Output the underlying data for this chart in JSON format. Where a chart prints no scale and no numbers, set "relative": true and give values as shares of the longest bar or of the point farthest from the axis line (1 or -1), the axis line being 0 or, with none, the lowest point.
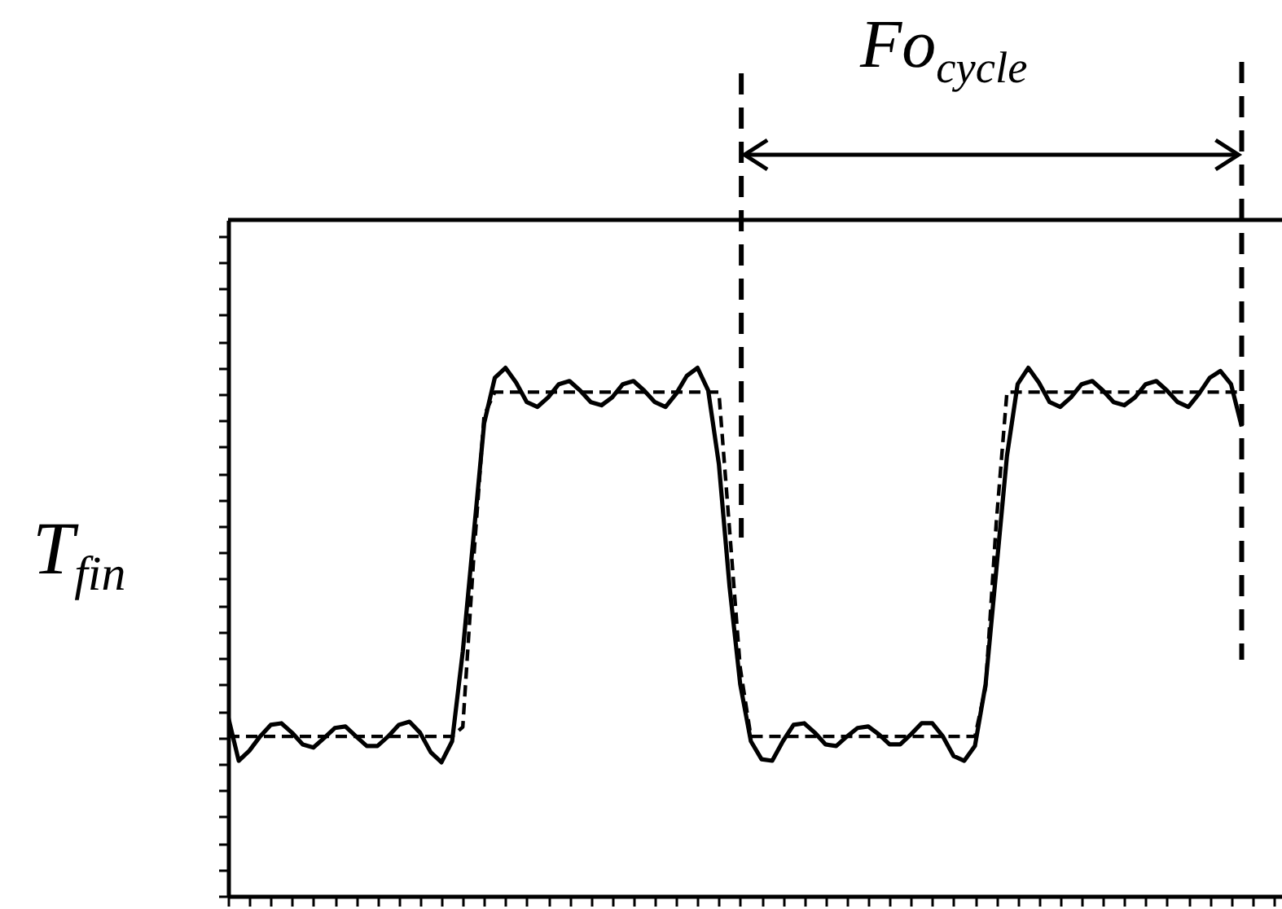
{
  "chart_data": {
    "type": "line",
    "relative": true,
    "ylabel": "T$_{fin}$",
    "annotations": [
      "Fo$_{cycle}$"
    ],
    "categories": [
      null,
      null,
      null,
      null,
      null,
      null,
      null,
      null,
      null,
      null,
      null,
      null,
      null,
      null,
      null,
      null,
      null,
      null,
      null,
      null,
      null,
      null,
      null,
      null,
      null,
      null,
      null,
      null,
      null,
      null,
      null,
      null,
      null,
      null,
      null,
      null,
      null,
      null,
      null,
      null,
      null,
      null,
      null,
      null,
      null,
      null,
      null,
      null,
      null,
      null,
      null,
      null,
      null,
      null,
      null,
      null,
      null,
      null,
      null,
      null,
      null,
      null,
      null,
      null,
      null,
      null,
      null,
      null,
      null,
      null,
      null,
      null,
      null,
      null,
      null,
      null,
      null,
      null,
      null,
      null,
      null,
      null,
      null,
      null,
      null,
      null,
      null,
      null,
      null,
      null,
      null,
      null,
      null,
      null,
      null,
      null
    ],
    "series": [
      {
        "color": "#000000",
        "line_style": "solid",
        "values": [
          0.34,
          0.256,
          0.275,
          0.302,
          0.324,
          0.327,
          0.309,
          0.287,
          0.281,
          0.299,
          0.318,
          0.321,
          0.302,
          0.284,
          0.284,
          0.302,
          0.324,
          0.33,
          0.309,
          0.272,
          0.253,
          0.293,
          0.463,
          0.679,
          0.895,
          0.981,
          1.0,
          0.972,
          0.935,
          0.926,
          0.944,
          0.969,
          0.975,
          0.957,
          0.935,
          0.929,
          0.944,
          0.969,
          0.975,
          0.957,
          0.935,
          0.926,
          0.951,
          0.985,
          1.0,
          0.957,
          0.818,
          0.586,
          0.401,
          0.293,
          0.259,
          0.256,
          0.293,
          0.324,
          0.327,
          0.309,
          0.287,
          0.284,
          0.302,
          0.318,
          0.321,
          0.306,
          0.287,
          0.287,
          0.306,
          0.327,
          0.327,
          0.302,
          0.265,
          0.256,
          0.284,
          0.401,
          0.617,
          0.833,
          0.969,
          1.0,
          0.972,
          0.935,
          0.926,
          0.944,
          0.969,
          0.975,
          0.957,
          0.935,
          0.929,
          0.944,
          0.969,
          0.975,
          0.957,
          0.935,
          0.926,
          0.951,
          0.981,
          0.994,
          0.969,
          0.889
        ]
      },
      {
        "color": "#000000",
        "line_style": "dashed",
        "values": [
          0.302,
          0.302,
          0.302,
          0.302,
          0.302,
          0.302,
          0.302,
          0.302,
          0.302,
          0.302,
          0.302,
          0.302,
          0.302,
          0.302,
          0.302,
          0.302,
          0.302,
          0.302,
          0.302,
          0.302,
          0.302,
          0.302,
          0.32,
          0.633,
          0.91,
          0.954,
          0.954,
          0.954,
          0.954,
          0.954,
          0.954,
          0.954,
          0.954,
          0.954,
          0.954,
          0.954,
          0.954,
          0.954,
          0.954,
          0.954,
          0.954,
          0.954,
          0.954,
          0.954,
          0.954,
          0.954,
          0.954,
          0.694,
          0.432,
          0.302,
          0.302,
          0.302,
          0.302,
          0.302,
          0.302,
          0.302,
          0.302,
          0.302,
          0.302,
          0.302,
          0.302,
          0.302,
          0.302,
          0.302,
          0.302,
          0.302,
          0.302,
          0.302,
          0.302,
          0.302,
          0.302,
          0.395,
          0.707,
          0.954,
          0.954,
          0.954,
          0.954,
          0.954,
          0.954,
          0.954,
          0.954,
          0.954,
          0.954,
          0.954,
          0.954,
          0.954,
          0.954,
          0.954,
          0.954,
          0.954,
          0.954,
          0.954,
          0.954,
          0.954,
          0.954,
          0.954
        ]
      }
    ]
  }
}
